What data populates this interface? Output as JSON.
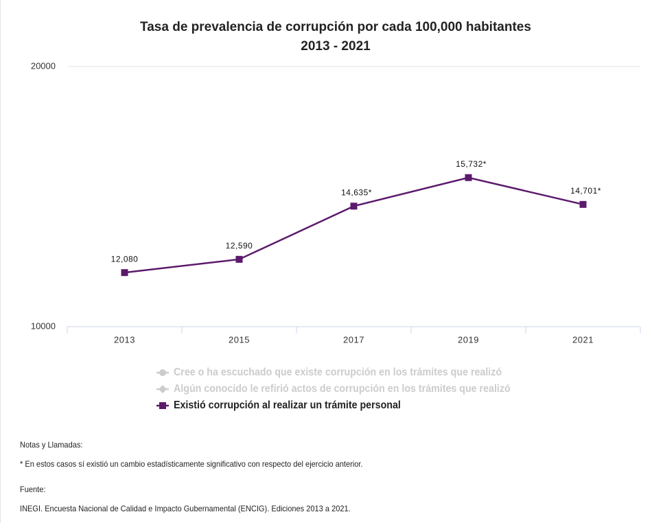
{
  "chart_data": {
    "type": "line",
    "title": "Tasa de prevalencia de corrupción por cada 100,000 habitantes",
    "subtitle": "2013 - 2021",
    "categories": [
      "2013",
      "2015",
      "2017",
      "2019",
      "2021"
    ],
    "series": [
      {
        "name": "Cree o ha escuchado que existe corrupción en los trámites que realizó",
        "color": "#cccccc",
        "hidden": true,
        "marker": "circle",
        "values": [
          null,
          null,
          null,
          null,
          null
        ]
      },
      {
        "name": "Algún conocido le refirió actos de corrupción en los trámites que realizó",
        "color": "#cccccc",
        "hidden": true,
        "marker": "diamond",
        "values": [
          null,
          null,
          null,
          null,
          null
        ]
      },
      {
        "name": "Existió corrupción al realizar un trámite personal",
        "color": "#5b1a6b",
        "hidden": false,
        "marker": "square",
        "values": [
          12080,
          12590,
          14635,
          15732,
          14701
        ],
        "value_labels": [
          "12,080",
          "12,590",
          "14,635*",
          "15,732*",
          "14,701*"
        ]
      }
    ],
    "ylim": [
      10000,
      20000
    ],
    "yticks": [
      10000,
      20000
    ],
    "grid": true
  },
  "notes": {
    "title": "Notas y Llamadas:",
    "text": "* En estos casos sí existió un cambio estadísticamente significativo con respecto del ejercicio anterior.",
    "source_title": "Fuente:",
    "source": "INEGI. Encuesta Nacional de Calidad e Impacto Gubernamental (ENCIG). Ediciones 2013 a 2021."
  }
}
